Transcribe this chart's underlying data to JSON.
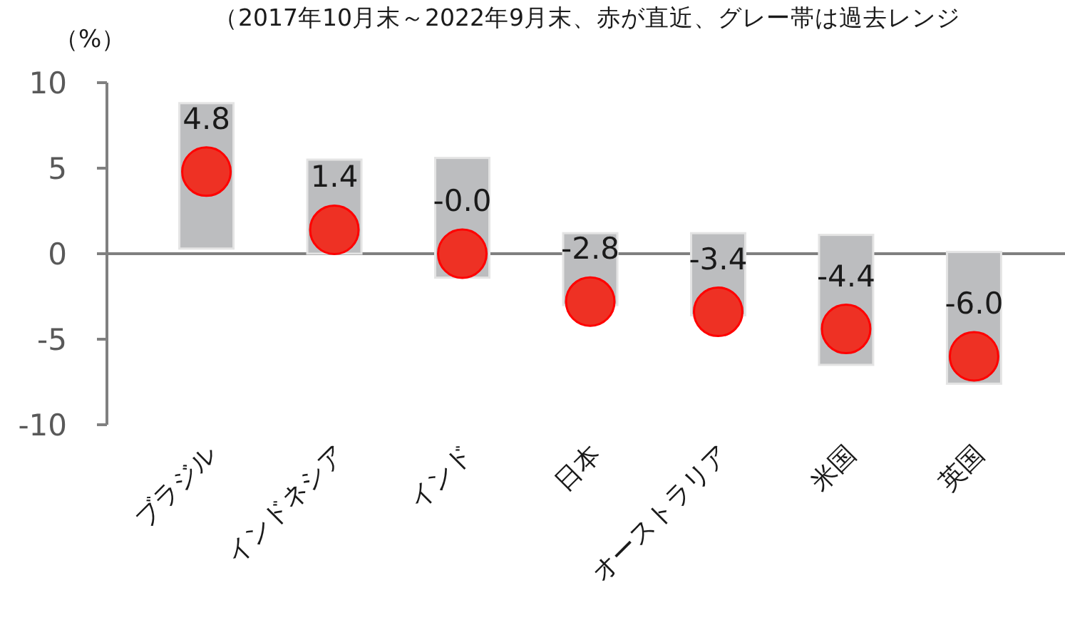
{
  "chart_data": {
    "type": "bar",
    "title": "（2017年10月末～2022年9月末、赤が直近、グレー帯は過去レンジ",
    "ylabel": "（%）",
    "categories": [
      "ブラジル",
      "インドネシア",
      "インド",
      "日本",
      "オーストラリア",
      "米国",
      "英国"
    ],
    "series": [
      {
        "color": "#bcbdbf",
        "base": [
          0.3,
          0.0,
          -1.4,
          -3.0,
          -3.6,
          -6.5,
          -7.6
        ],
        "values": [
          8.5,
          5.5,
          7.0,
          4.2,
          4.8,
          7.6,
          7.7
        ]
      },
      {
        "type": "scatter",
        "color": "#ee3124",
        "x": [
          "ブラジル",
          "インドネシア",
          "インド",
          "日本",
          "オーストラリア",
          "米国",
          "英国"
        ],
        "values": [
          4.8,
          1.4,
          0.0,
          -2.8,
          -3.4,
          -4.4,
          -6.0
        ],
        "value_labels": [
          "4.8",
          "1.4",
          "-0.0",
          "-2.8",
          "-3.4",
          "-4.4",
          "-6.0"
        ]
      }
    ],
    "marker": "circle",
    "ref_lines": [
      {
        "axis": "y",
        "value": 0,
        "color": "#808080"
      }
    ],
    "ylim": [
      -10,
      10
    ],
    "yticks": [
      -10,
      -5,
      0,
      5,
      10
    ]
  }
}
